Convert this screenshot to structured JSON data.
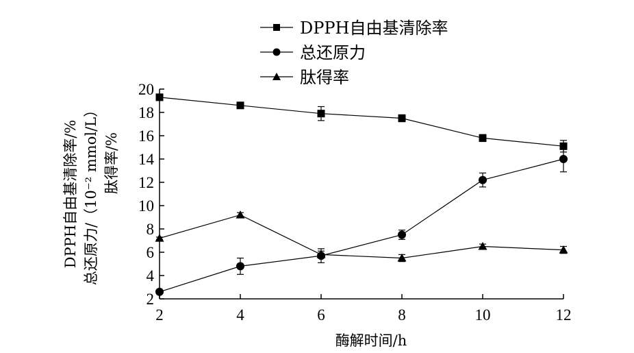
{
  "chart_data": {
    "type": "line",
    "xlabel": "酶解时间/h",
    "ylabel_lines": [
      "DPPH自由基清除率/%",
      "总还原力/（10⁻² mmol/L）",
      "肽得率/%"
    ],
    "x": [
      2,
      4,
      6,
      8,
      10,
      12
    ],
    "xlim": [
      2,
      12
    ],
    "ylim": [
      2,
      20
    ],
    "x_ticks": [
      2,
      4,
      6,
      8,
      10,
      12
    ],
    "y_ticks": [
      2,
      4,
      6,
      8,
      10,
      12,
      14,
      16,
      18,
      20
    ],
    "grid": false,
    "legend_position": "top",
    "series": [
      {
        "name": "DPPH自由基清除率",
        "marker": "square",
        "values": [
          19.3,
          18.6,
          17.9,
          17.5,
          15.8,
          15.1
        ],
        "errors": [
          0.2,
          0.2,
          0.6,
          0.3,
          0.3,
          0.5
        ]
      },
      {
        "name": "总还原力",
        "marker": "circle",
        "values": [
          2.6,
          4.8,
          5.7,
          7.5,
          12.2,
          14.0
        ],
        "errors": [
          0.1,
          0.7,
          0.6,
          0.4,
          0.6,
          1.1
        ]
      },
      {
        "name": "肽得率",
        "marker": "triangle",
        "values": [
          7.2,
          9.2,
          5.8,
          5.5,
          6.5,
          6.2
        ],
        "errors": [
          0.1,
          0.2,
          0.3,
          0.3,
          0.2,
          0.3
        ]
      }
    ]
  }
}
